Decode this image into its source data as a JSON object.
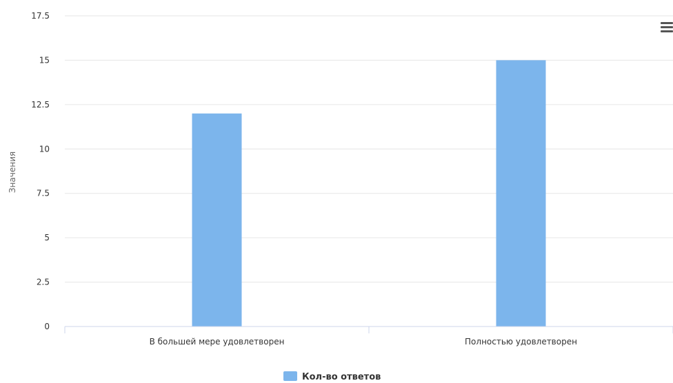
{
  "chart_data": {
    "type": "bar",
    "categories": [
      "В большей мере удовлетворен",
      "Полностью удовлетворен"
    ],
    "series": [
      {
        "name": "Кол-во ответов",
        "values": [
          12,
          15
        ],
        "color": "#7cb5ec"
      }
    ],
    "ylabel": "Значения",
    "ylim": [
      0,
      17.5
    ],
    "yticks": [
      "0",
      "2.5",
      "5",
      "7.5",
      "10",
      "12.5",
      "15",
      "17.5"
    ],
    "grid": true,
    "legend": "bottom-center"
  },
  "icons": {
    "menu": "hamburger-menu-icon"
  },
  "colors": {
    "grid": "#e6e6e6",
    "axis": "#ccd6eb",
    "bar": "#7cb5ec"
  }
}
